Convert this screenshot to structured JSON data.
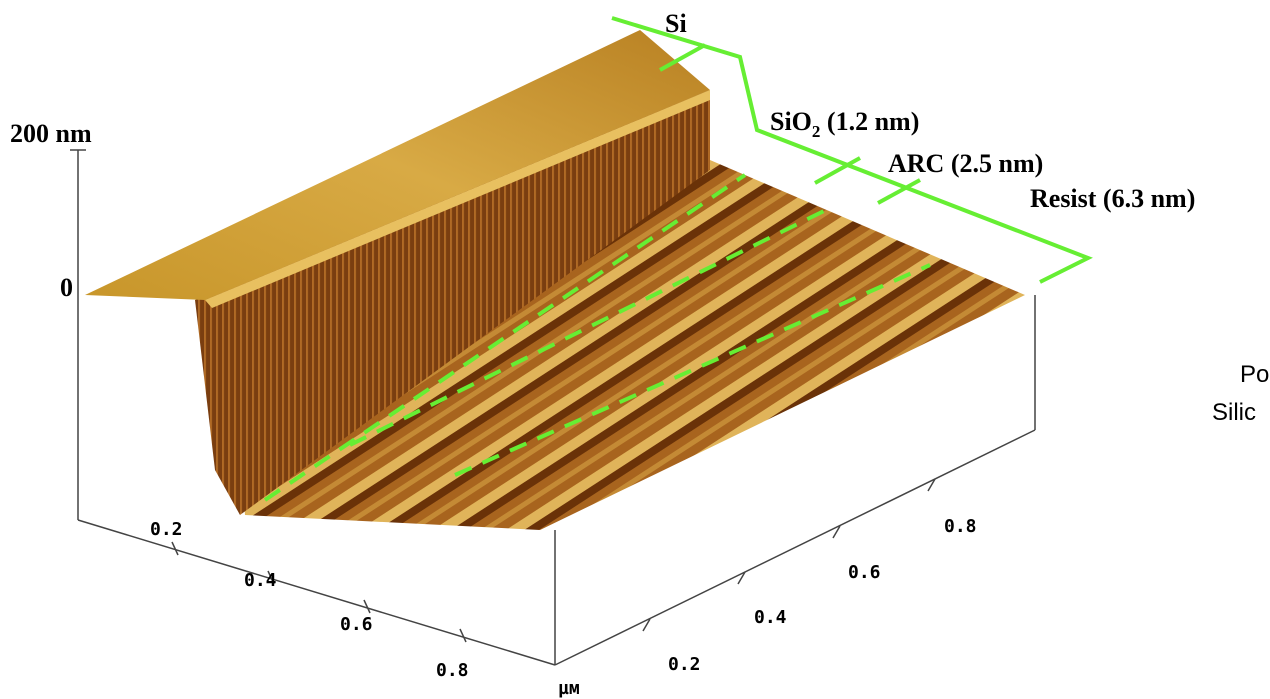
{
  "labels": {
    "si": "Si",
    "sio2": {
      "base": "SiO",
      "sub": "2",
      "rest": " (1.2 nm)"
    },
    "arc": "ARC (2.5 nm)",
    "resist": "Resist (6.3 nm)"
  },
  "z_axis": {
    "top": "200 nm",
    "zero": "0"
  },
  "x_axis": {
    "ticks": [
      "0.2",
      "0.4",
      "0.6",
      "0.8"
    ]
  },
  "y_axis": {
    "ticks": [
      "0.2",
      "0.4",
      "0.6",
      "0.8"
    ],
    "unit": "µм"
  },
  "side_text": [
    "Po",
    "Silic"
  ]
}
